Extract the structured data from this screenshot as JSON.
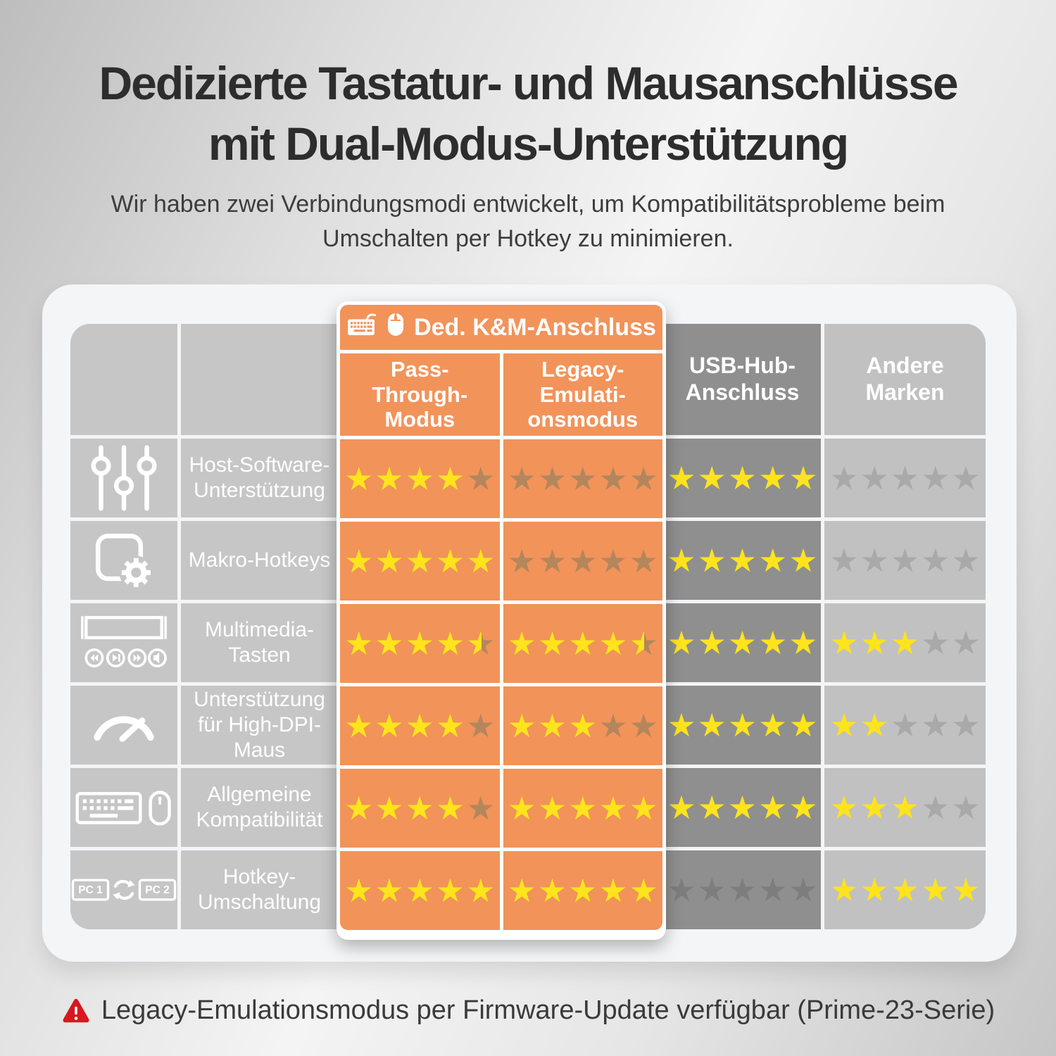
{
  "page": {
    "title_line1": "Dedizierte Tastatur- und Mausanschlüsse",
    "title_line2": "mit Dual-Modus-Unterstützung",
    "subtitle": "Wir haben zwei Verbindungsmodi entwickelt, um Kompatibilitätsprobleme beim Umschalten per Hotkey zu minimieren.",
    "footnote": "Legacy-Emulationsmodus per Firmware-Update verfügbar (Prime-23-Serie)"
  },
  "table": {
    "group_header": {
      "label": "Ded. K&M-Anschluss",
      "icons": [
        "keyboard-icon",
        "mouse-icon"
      ]
    },
    "columns": [
      {
        "id": "pass",
        "label": "Pass-Through-Modus",
        "style": "orange"
      },
      {
        "id": "legacy",
        "label": "Legacy-Emulati-onsmodus",
        "style": "orange"
      },
      {
        "id": "usb",
        "label": "USB-Hub-Anschluss",
        "style": "dark-gray"
      },
      {
        "id": "andere",
        "label": "Andere Marken",
        "style": "light-gray"
      }
    ],
    "rows": [
      {
        "icon": "sliders-icon",
        "label": "Host-Software-Unterstützung",
        "ratings": {
          "pass": 4,
          "legacy": 0,
          "usb": 5,
          "andere": 0
        }
      },
      {
        "icon": "macro-gear-icon",
        "label": "Makro-Hotkeys",
        "ratings": {
          "pass": 5,
          "legacy": 0,
          "usb": 5,
          "andere": 0
        }
      },
      {
        "icon": "multimedia-keys-icon",
        "label": "Multimedia-Tasten",
        "ratings": {
          "pass": 4.5,
          "legacy": 4.5,
          "usb": 5,
          "andere": 3
        }
      },
      {
        "icon": "gauge-icon",
        "label": "Unterstützung für High-DPI-Maus",
        "ratings": {
          "pass": 4,
          "legacy": 3,
          "usb": 5,
          "andere": 2
        }
      },
      {
        "icon": "keyboard-mouse-icon",
        "label": "Allgemeine Kompatibilität",
        "ratings": {
          "pass": 4,
          "legacy": 5,
          "usb": 5,
          "andere": 3
        }
      },
      {
        "icon": "pc-switch-icon",
        "label": "Hotkey-Umschaltung",
        "ratings": {
          "pass": 5,
          "legacy": 5,
          "usb": 0,
          "andere": 5
        }
      }
    ],
    "max_rating": 5
  },
  "colors": {
    "orange": "#F2935A",
    "dark_gray": "#8F8F8F",
    "light_gray": "#C1C1C1",
    "label_gray": "#C6C6C6",
    "star_yellow": "#FFE41C",
    "star_empty_on_orange": "#B4865C",
    "star_empty_on_light": "#A9A9A9",
    "star_empty_on_dark": "#7D7D7D",
    "warning_red": "#D7181F"
  },
  "chart_data": {
    "type": "table",
    "title": "Dedizierte Tastatur- und Mausanschlüsse mit Dual-Modus-Unterstützung",
    "subtitle": "Wir haben zwei Verbindungsmodi entwickelt, um Kompatibilitätsprobleme beim Umschalten per Hotkey zu minimieren.",
    "column_group": "Ded. K&M-Anschluss (Pass-Through-Modus, Legacy-Emulationsmodus)",
    "columns": [
      "Pass-Through-Modus",
      "Legacy-Emulationsmodus",
      "USB-Hub-Anschluss",
      "Andere Marken"
    ],
    "rows": [
      "Host-Software-Unterstützung",
      "Makro-Hotkeys",
      "Multimedia-Tasten",
      "Unterstützung für High-DPI-Maus",
      "Allgemeine Kompatibilität",
      "Hotkey-Umschaltung"
    ],
    "ratings_out_of_5": [
      [
        4,
        0,
        5,
        0
      ],
      [
        5,
        0,
        5,
        0
      ],
      [
        4.5,
        4.5,
        5,
        3
      ],
      [
        4,
        3,
        5,
        2
      ],
      [
        4,
        5,
        5,
        3
      ],
      [
        5,
        5,
        0,
        5
      ]
    ],
    "footnote": "Legacy-Emulationsmodus per Firmware-Update verfügbar (Prime-23-Serie)"
  }
}
